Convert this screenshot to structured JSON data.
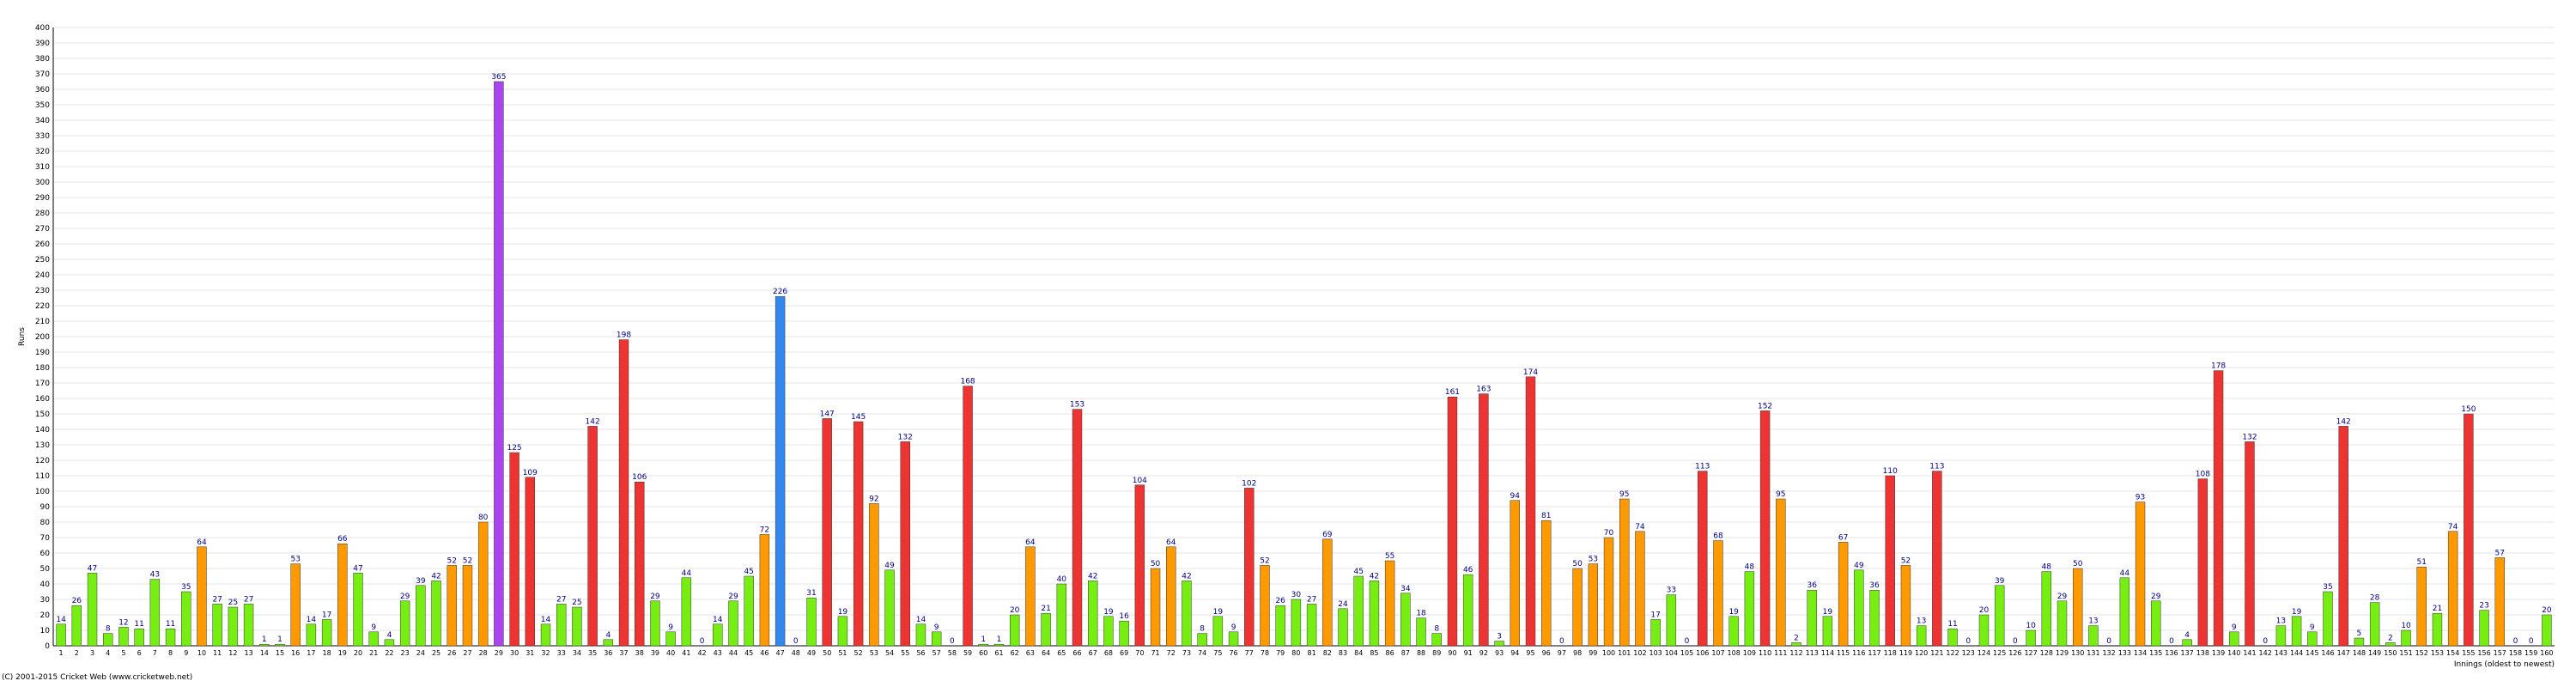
{
  "chart_data": {
    "type": "bar",
    "y_label": "Runs",
    "x_label": "Innings (oldest to newest)",
    "footer": "(C) 2001-2015 Cricket Web (www.cricketweb.net)",
    "categories": [
      "1",
      "2",
      "3",
      "4",
      "5",
      "6",
      "7",
      "8",
      "9",
      "10",
      "11",
      "12",
      "13",
      "14",
      "15",
      "16",
      "17",
      "18",
      "19",
      "20",
      "21",
      "22",
      "23",
      "24",
      "25",
      "26",
      "27",
      "28",
      "29",
      "30",
      "31",
      "32",
      "33",
      "34",
      "35",
      "36",
      "37",
      "38",
      "39",
      "40",
      "41",
      "42",
      "43",
      "44",
      "45",
      "46",
      "47",
      "48",
      "49",
      "50",
      "51",
      "52",
      "53",
      "54",
      "55",
      "56",
      "57",
      "58",
      "59",
      "60",
      "61",
      "62",
      "63",
      "64",
      "65",
      "66",
      "67",
      "68",
      "69",
      "70",
      "71",
      "72",
      "73",
      "74",
      "75",
      "76",
      "77",
      "78",
      "79",
      "80",
      "81",
      "82",
      "83",
      "84",
      "85",
      "86",
      "87",
      "88",
      "89",
      "90",
      "91",
      "92",
      "93",
      "94",
      "95",
      "96",
      "97",
      "98",
      "99",
      "100",
      "101",
      "102",
      "103",
      "104",
      "105",
      "106",
      "107",
      "108",
      "109",
      "110",
      "111",
      "112",
      "113",
      "114",
      "115",
      "116",
      "117",
      "118",
      "119",
      "120",
      "121",
      "122",
      "123",
      "124",
      "125",
      "126",
      "127",
      "128",
      "129",
      "130",
      "131",
      "132",
      "133",
      "134",
      "135",
      "136",
      "137",
      "138",
      "139",
      "140",
      "141",
      "142",
      "143",
      "144",
      "145",
      "146",
      "147",
      "148",
      "149",
      "150",
      "151",
      "152",
      "153",
      "154",
      "155",
      "156",
      "157",
      "158",
      "159",
      "160"
    ],
    "values": [
      14,
      26,
      47,
      8,
      12,
      11,
      43,
      11,
      35,
      64,
      27,
      25,
      27,
      1,
      1,
      53,
      14,
      17,
      66,
      47,
      9,
      4,
      29,
      39,
      42,
      52,
      52,
      80,
      365,
      125,
      109,
      14,
      27,
      25,
      142,
      4,
      198,
      106,
      29,
      9,
      44,
      0,
      14,
      29,
      45,
      72,
      226,
      0,
      31,
      147,
      19,
      145,
      92,
      49,
      132,
      14,
      9,
      0,
      168,
      1,
      1,
      20,
      64,
      21,
      40,
      153,
      42,
      19,
      16,
      104,
      50,
      64,
      42,
      8,
      19,
      9,
      102,
      52,
      26,
      30,
      27,
      69,
      24,
      45,
      42,
      55,
      34,
      18,
      8,
      161,
      46,
      163,
      3,
      94,
      174,
      81,
      0,
      50,
      53,
      70,
      95,
      74,
      17,
      33,
      0,
      113,
      68,
      19,
      48,
      152,
      95,
      2,
      36,
      19,
      67,
      49,
      36,
      110,
      52,
      13,
      113,
      11,
      0,
      20,
      39,
      0,
      10,
      48,
      29,
      50,
      13,
      0,
      44,
      93,
      29,
      0,
      4,
      108,
      178,
      9,
      132,
      0,
      13,
      19,
      9,
      35,
      142,
      5,
      28,
      2,
      10,
      51,
      21,
      74,
      150,
      23,
      57,
      0,
      0,
      20
    ],
    "colors": [
      "#77ee11",
      "#77ee11",
      "#77ee11",
      "#77ee11",
      "#77ee11",
      "#77ee11",
      "#77ee11",
      "#77ee11",
      "#77ee11",
      "#ff9900",
      "#77ee11",
      "#77ee11",
      "#77ee11",
      "#77ee11",
      "#77ee11",
      "#ff9900",
      "#77ee11",
      "#77ee11",
      "#ff9900",
      "#77ee11",
      "#77ee11",
      "#77ee11",
      "#77ee11",
      "#77ee11",
      "#77ee11",
      "#ff9900",
      "#ff9900",
      "#ff9900",
      "#aa44ee",
      "#ee3333",
      "#ee3333",
      "#77ee11",
      "#77ee11",
      "#77ee11",
      "#ee3333",
      "#77ee11",
      "#ee3333",
      "#ee3333",
      "#77ee11",
      "#77ee11",
      "#77ee11",
      "#77ee11",
      "#77ee11",
      "#77ee11",
      "#77ee11",
      "#ff9900",
      "#3388ee",
      "#77ee11",
      "#77ee11",
      "#ee3333",
      "#77ee11",
      "#ee3333",
      "#ff9900",
      "#77ee11",
      "#ee3333",
      "#77ee11",
      "#77ee11",
      "#77ee11",
      "#ee3333",
      "#77ee11",
      "#77ee11",
      "#77ee11",
      "#ff9900",
      "#77ee11",
      "#77ee11",
      "#ee3333",
      "#77ee11",
      "#77ee11",
      "#77ee11",
      "#ee3333",
      "#ff9900",
      "#ff9900",
      "#77ee11",
      "#77ee11",
      "#77ee11",
      "#77ee11",
      "#ee3333",
      "#ff9900",
      "#77ee11",
      "#77ee11",
      "#77ee11",
      "#ff9900",
      "#77ee11",
      "#77ee11",
      "#77ee11",
      "#ff9900",
      "#77ee11",
      "#77ee11",
      "#77ee11",
      "#ee3333",
      "#77ee11",
      "#ee3333",
      "#77ee11",
      "#ff9900",
      "#ee3333",
      "#ff9900",
      "#77ee11",
      "#ff9900",
      "#ff9900",
      "#ff9900",
      "#ff9900",
      "#ff9900",
      "#77ee11",
      "#77ee11",
      "#77ee11",
      "#ee3333",
      "#ff9900",
      "#77ee11",
      "#77ee11",
      "#ee3333",
      "#ff9900",
      "#77ee11",
      "#77ee11",
      "#77ee11",
      "#ff9900",
      "#77ee11",
      "#77ee11",
      "#ee3333",
      "#ff9900",
      "#77ee11",
      "#ee3333",
      "#77ee11",
      "#77ee11",
      "#77ee11",
      "#77ee11",
      "#77ee11",
      "#77ee11",
      "#77ee11",
      "#77ee11",
      "#ff9900",
      "#77ee11",
      "#77ee11",
      "#77ee11",
      "#ff9900",
      "#77ee11",
      "#77ee11",
      "#77ee11",
      "#ee3333",
      "#ee3333",
      "#77ee11",
      "#ee3333",
      "#77ee11",
      "#77ee11",
      "#77ee11",
      "#77ee11",
      "#77ee11",
      "#ee3333",
      "#77ee11",
      "#77ee11",
      "#77ee11",
      "#77ee11",
      "#ff9900",
      "#77ee11",
      "#ff9900",
      "#ee3333",
      "#77ee11",
      "#ff9900",
      "#77ee11",
      "#77ee11",
      "#77ee11"
    ],
    "ylim": [
      0,
      400
    ],
    "yticks": [
      0,
      10,
      20,
      30,
      40,
      50,
      60,
      70,
      80,
      90,
      100,
      110,
      120,
      130,
      140,
      150,
      160,
      170,
      180,
      190,
      200,
      210,
      220,
      230,
      240,
      250,
      260,
      270,
      280,
      290,
      300,
      310,
      320,
      330,
      340,
      350,
      360,
      370,
      380,
      390,
      400
    ],
    "grid": true
  }
}
